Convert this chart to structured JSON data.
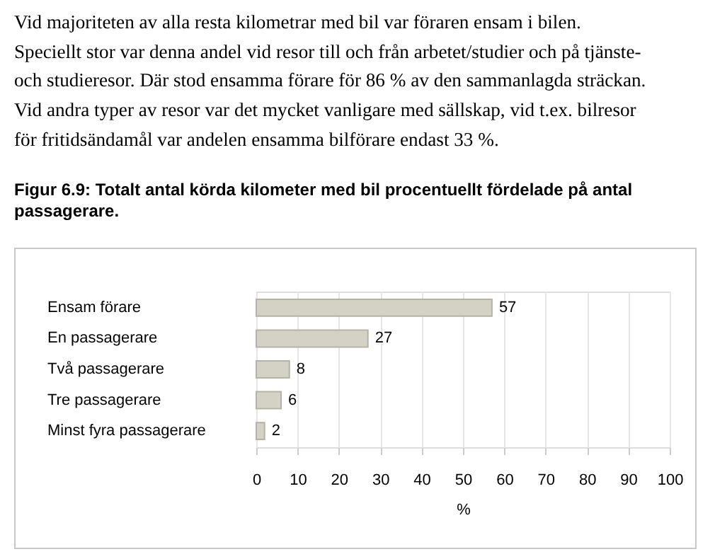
{
  "chart_data": {
    "type": "bar",
    "orientation": "horizontal",
    "title": "Figur 6.9: Totalt antal körda kilometer med bil procentuellt fördelade på antal passagerare.",
    "annotations": [
      "Vid majoriteten av alla resta kilometrar med bil var föraren ensam i bilen.\nSpeciellt stor var denna andel vid resor till och från arbetet/studier och på tjänste-\noch studieresor. Där stod ensamma förare för 86 % av den sammanlagda sträckan.\nVid andra typer av resor var det mycket vanligare med sällskap, vid t.ex. bilresor\nför fritidsändamål var andelen ensamma bilförare endast 33 %."
    ],
    "categories": [
      "Ensam förare",
      "En passagerare",
      "Två passagerare",
      "Tre passagerare",
      "Minst fyra passagerare"
    ],
    "values": [
      57,
      27,
      8,
      6,
      2
    ],
    "color": "#d4d2c4",
    "xlabel": "%",
    "xlim": [
      0,
      100
    ],
    "xticks": [
      0,
      10,
      20,
      30,
      40,
      50,
      60,
      70,
      80,
      90,
      100
    ],
    "grid": "x",
    "data_labels": true
  }
}
